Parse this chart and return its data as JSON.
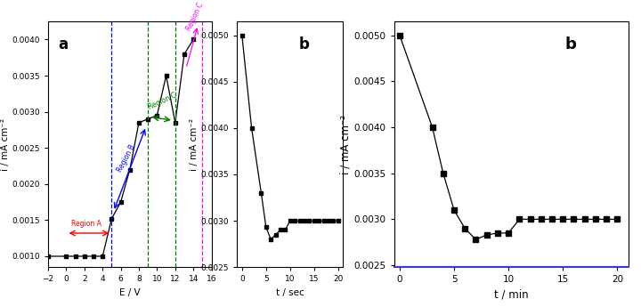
{
  "panel_a": {
    "x": [
      -2,
      0,
      1,
      2,
      3,
      4,
      5,
      6,
      7,
      8,
      9,
      10,
      11,
      12,
      13,
      14
    ],
    "y": [
      0.001,
      0.001,
      0.001,
      0.001,
      0.001,
      0.001,
      0.00152,
      0.00175,
      0.0022,
      0.00285,
      0.0029,
      0.00295,
      0.0035,
      0.00285,
      0.0038,
      0.004
    ],
    "xlabel": "E / V",
    "ylabel": "i / mA cm⁻²",
    "label": "a",
    "xlim": [
      -2,
      16
    ],
    "ylim": [
      0.00085,
      0.00425
    ],
    "yticks": [
      0.001,
      0.0015,
      0.002,
      0.0025,
      0.003,
      0.0035,
      0.004
    ],
    "xticks": [
      -2,
      0,
      2,
      4,
      6,
      8,
      10,
      12,
      14,
      16
    ],
    "vline1_x": 5,
    "vline2_x": 9,
    "vline3_x": 12,
    "vline4_x": 15
  },
  "panel_b_sec": {
    "x": [
      0,
      2,
      4,
      5,
      6,
      7,
      8,
      9,
      10,
      11,
      12,
      13,
      14,
      15,
      16,
      17,
      18,
      19,
      20
    ],
    "y": [
      0.005,
      0.004,
      0.0033,
      0.00293,
      0.0028,
      0.00285,
      0.0029,
      0.0029,
      0.003,
      0.003,
      0.003,
      0.003,
      0.003,
      0.003,
      0.003,
      0.003,
      0.003,
      0.003,
      0.003
    ],
    "xlabel": "t / sec",
    "ylabel": "i / mA cm⁻²",
    "label": "b",
    "xlim": [
      -1,
      21
    ],
    "ylim": [
      0.00265,
      0.00515
    ],
    "yticks": [
      0.0025,
      0.003,
      0.0035,
      0.004,
      0.0045,
      0.005
    ],
    "xticks": [
      0,
      5,
      10,
      15,
      20
    ]
  },
  "panel_b_min": {
    "x": [
      0,
      3,
      4,
      5,
      6,
      7,
      8,
      9,
      10,
      11,
      12,
      13,
      14,
      15,
      16,
      17,
      18,
      19,
      20
    ],
    "y": [
      0.005,
      0.004,
      0.0035,
      0.0031,
      0.0029,
      0.00278,
      0.00283,
      0.00285,
      0.00285,
      0.003,
      0.003,
      0.003,
      0.003,
      0.003,
      0.003,
      0.003,
      0.003,
      0.003,
      0.003
    ],
    "xlabel": "t / min",
    "ylabel": "i / mA cm⁻²",
    "label": "b",
    "xlim": [
      -0.5,
      21
    ],
    "ylim": [
      0.00248,
      0.00515
    ],
    "yticks": [
      0.0025,
      0.003,
      0.0035,
      0.004,
      0.0045,
      0.005
    ],
    "xticks": [
      0,
      5,
      10,
      15,
      20
    ]
  }
}
